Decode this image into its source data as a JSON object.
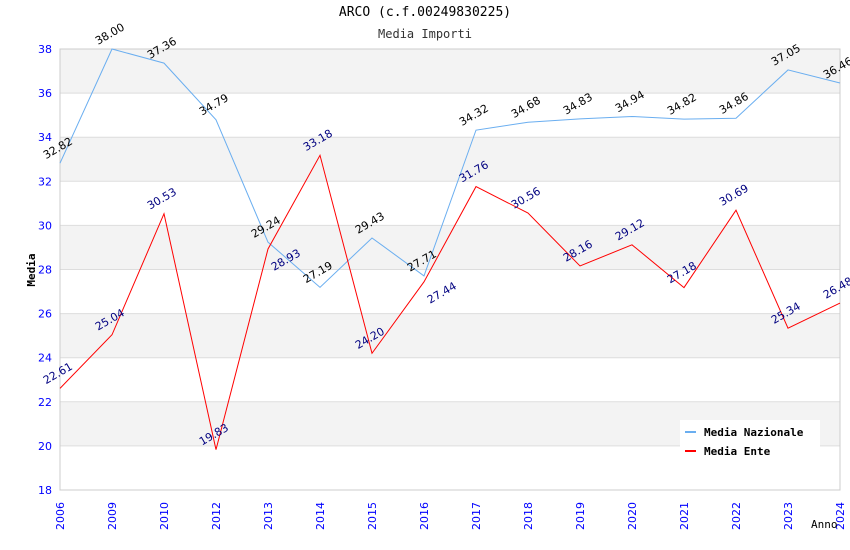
{
  "chart_data": {
    "type": "line",
    "title": "ARCO (c.f.00249830225)",
    "subtitle": "Media Importi",
    "xlabel": "Anno",
    "ylabel": "Media",
    "ylim": [
      18,
      38
    ],
    "yticks": [
      18,
      20,
      22,
      24,
      26,
      28,
      30,
      32,
      34,
      36,
      38
    ],
    "grid": true,
    "legend_position": "top-right",
    "categories": [
      "2006",
      "2009",
      "2010",
      "2012",
      "2013",
      "2014",
      "2015",
      "2016",
      "2017",
      "2018",
      "2019",
      "2020",
      "2021",
      "2022",
      "2023",
      "2024"
    ],
    "series": [
      {
        "name": "Media Nazionale",
        "color": "#6aaef0",
        "label_color": "#000000",
        "values": [
          32.82,
          38.0,
          37.36,
          34.79,
          29.24,
          27.19,
          29.43,
          27.71,
          34.32,
          34.68,
          34.83,
          34.94,
          34.82,
          34.86,
          37.05,
          36.46
        ]
      },
      {
        "name": "Media Ente",
        "color": "#ff0000",
        "label_color": "#000080",
        "values": [
          22.61,
          25.04,
          30.53,
          19.83,
          28.93,
          33.18,
          24.2,
          27.44,
          31.76,
          30.56,
          28.16,
          29.12,
          27.18,
          30.69,
          25.34,
          26.48
        ]
      }
    ]
  }
}
